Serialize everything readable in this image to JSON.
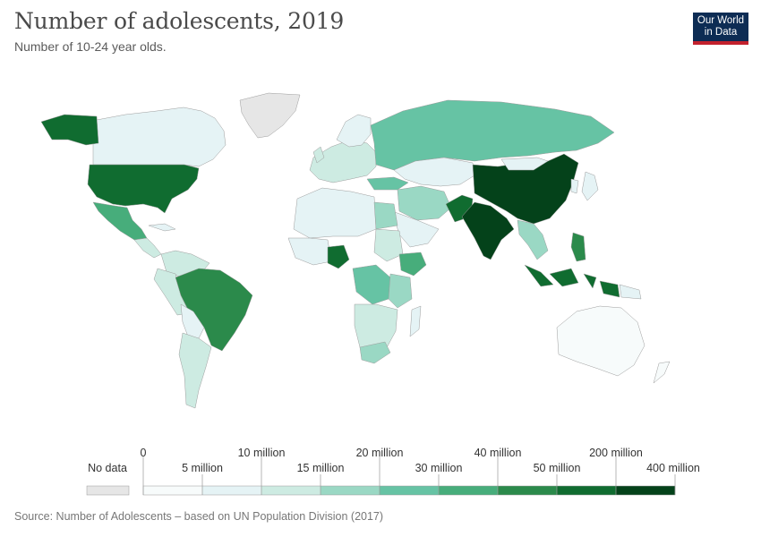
{
  "header": {
    "title": "Number of adolescents, 2019",
    "subtitle": "Number of 10-24 year olds."
  },
  "logo": {
    "line1": "Our World",
    "line2": "in Data"
  },
  "colors": {
    "no_data": "#e6e6e6",
    "bins": [
      "#f7fbfb",
      "#e5f3f5",
      "#cdebe2",
      "#9ad8c4",
      "#66c3a4",
      "#47ad7b",
      "#2b8a4b",
      "#106c30",
      "#04421a"
    ]
  },
  "legend": {
    "no_data_label": "No data",
    "upper_labels": [
      "0",
      "10 million",
      "20 million",
      "40 million",
      "200 million"
    ],
    "lower_labels": [
      "5 million",
      "15 million",
      "30 million",
      "50 million",
      "400 million"
    ]
  },
  "source": "Source: Number of Adolescents – based on UN Population Division (2017)"
}
